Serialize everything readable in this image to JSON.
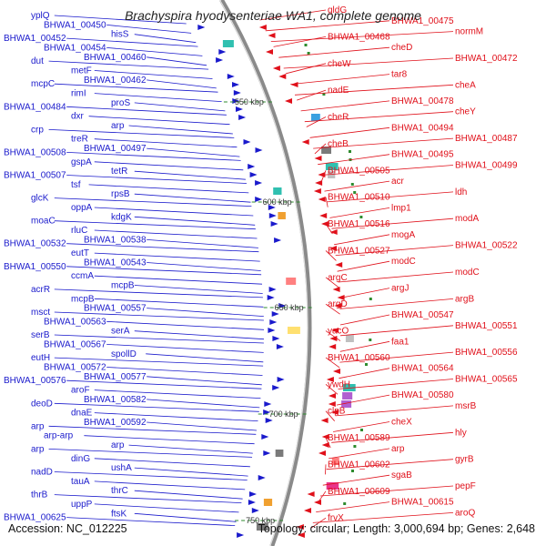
{
  "title": "Brachyspira hyodysenteriae WA1, complete genome",
  "footer": {
    "accession": "Accession: NC_012225",
    "topology": "Topology: circular; Length: 3,000,694 bp; Genes: 2,648"
  },
  "colors": {
    "left_genes": "#1a1acc",
    "right_genes": "#e0101a",
    "backbone": "#8a8a8a",
    "tick": "#2e8b2e"
  },
  "position_ticks": [
    "550 kbp",
    "600 kbp",
    "650 kbp",
    "700 kbp",
    "750 kbp"
  ],
  "left_labels": [
    "yplQ",
    "BHWA1_00450",
    "hisS",
    "BHWA1_00452",
    "BHWA1_00454",
    "BHWA1_00460",
    "dut",
    "metF",
    "BHWA1_00462",
    "mcpC",
    "rimI",
    "proS",
    "BHWA1_00484",
    "dxr",
    "arp",
    "crp",
    "treR",
    "BHWA1_00497",
    "BHWA1_00508",
    "gspA",
    "tetR",
    "BHWA1_00507",
    "tsf",
    "rpsB",
    "glcK",
    "oppA",
    "kdgK",
    "moaC",
    "rluC",
    "BHWA1_00538",
    "BHWA1_00532",
    "eutT",
    "BHWA1_00543",
    "BHWA1_00550",
    "ccmA",
    "mcpB",
    "acrR",
    "mcpB",
    "BHWA1_00557",
    "msct",
    "BHWA1_00563",
    "serA",
    "serB",
    "BHWA1_00567",
    "spollD",
    "eutH",
    "BHWA1_00572",
    "BHWA1_00577",
    "BHWA1_00576",
    "aroF",
    "BHWA1_00582",
    "deoD",
    "dnaE",
    "BHWA1_00592",
    "arp",
    "arp-arp",
    "arp",
    "arp",
    "dinG",
    "ushA",
    "nadD",
    "tauA",
    "thrC",
    "thrB",
    "uppP",
    "ftsK",
    "BHWA1_00625"
  ],
  "right_labels": [
    "gldG",
    "BHWA1_00475",
    "normM",
    "BHWA1_00468",
    "cheD",
    "BHWA1_00472",
    "cheW",
    "tar8",
    "cheA",
    "nadE",
    "BHWA1_00478",
    "cheY",
    "cheR",
    "BHWA1_00494",
    "BHWA1_00487",
    "cheB",
    "BHWA1_00495",
    "BHWA1_00499",
    "BHWA1_00505",
    "acr",
    "ldh",
    "BHWA1_00510",
    "lmp1",
    "modA",
    "BHWA1_00516",
    "mogA",
    "BHWA1_00522",
    "BHWA1_00527",
    "modC",
    "modC",
    "argC",
    "argJ",
    "argB",
    "argD",
    "BHWA1_00547",
    "BHWA1_00551",
    "yacO",
    "faa1",
    "BHWA1_00556",
    "BHWA1_00560",
    "BHWA1_00564",
    "BHWA1_00565",
    "ywdH",
    "BHWA1_00580",
    "msrB",
    "clpB",
    "cheX",
    "hly",
    "BHWA1_00589",
    "arp",
    "gyrB",
    "BHWA1_00602",
    "sgaB",
    "pepF",
    "BHWA1_00609",
    "BHWA1_00615",
    "aroQ",
    "frvX"
  ]
}
